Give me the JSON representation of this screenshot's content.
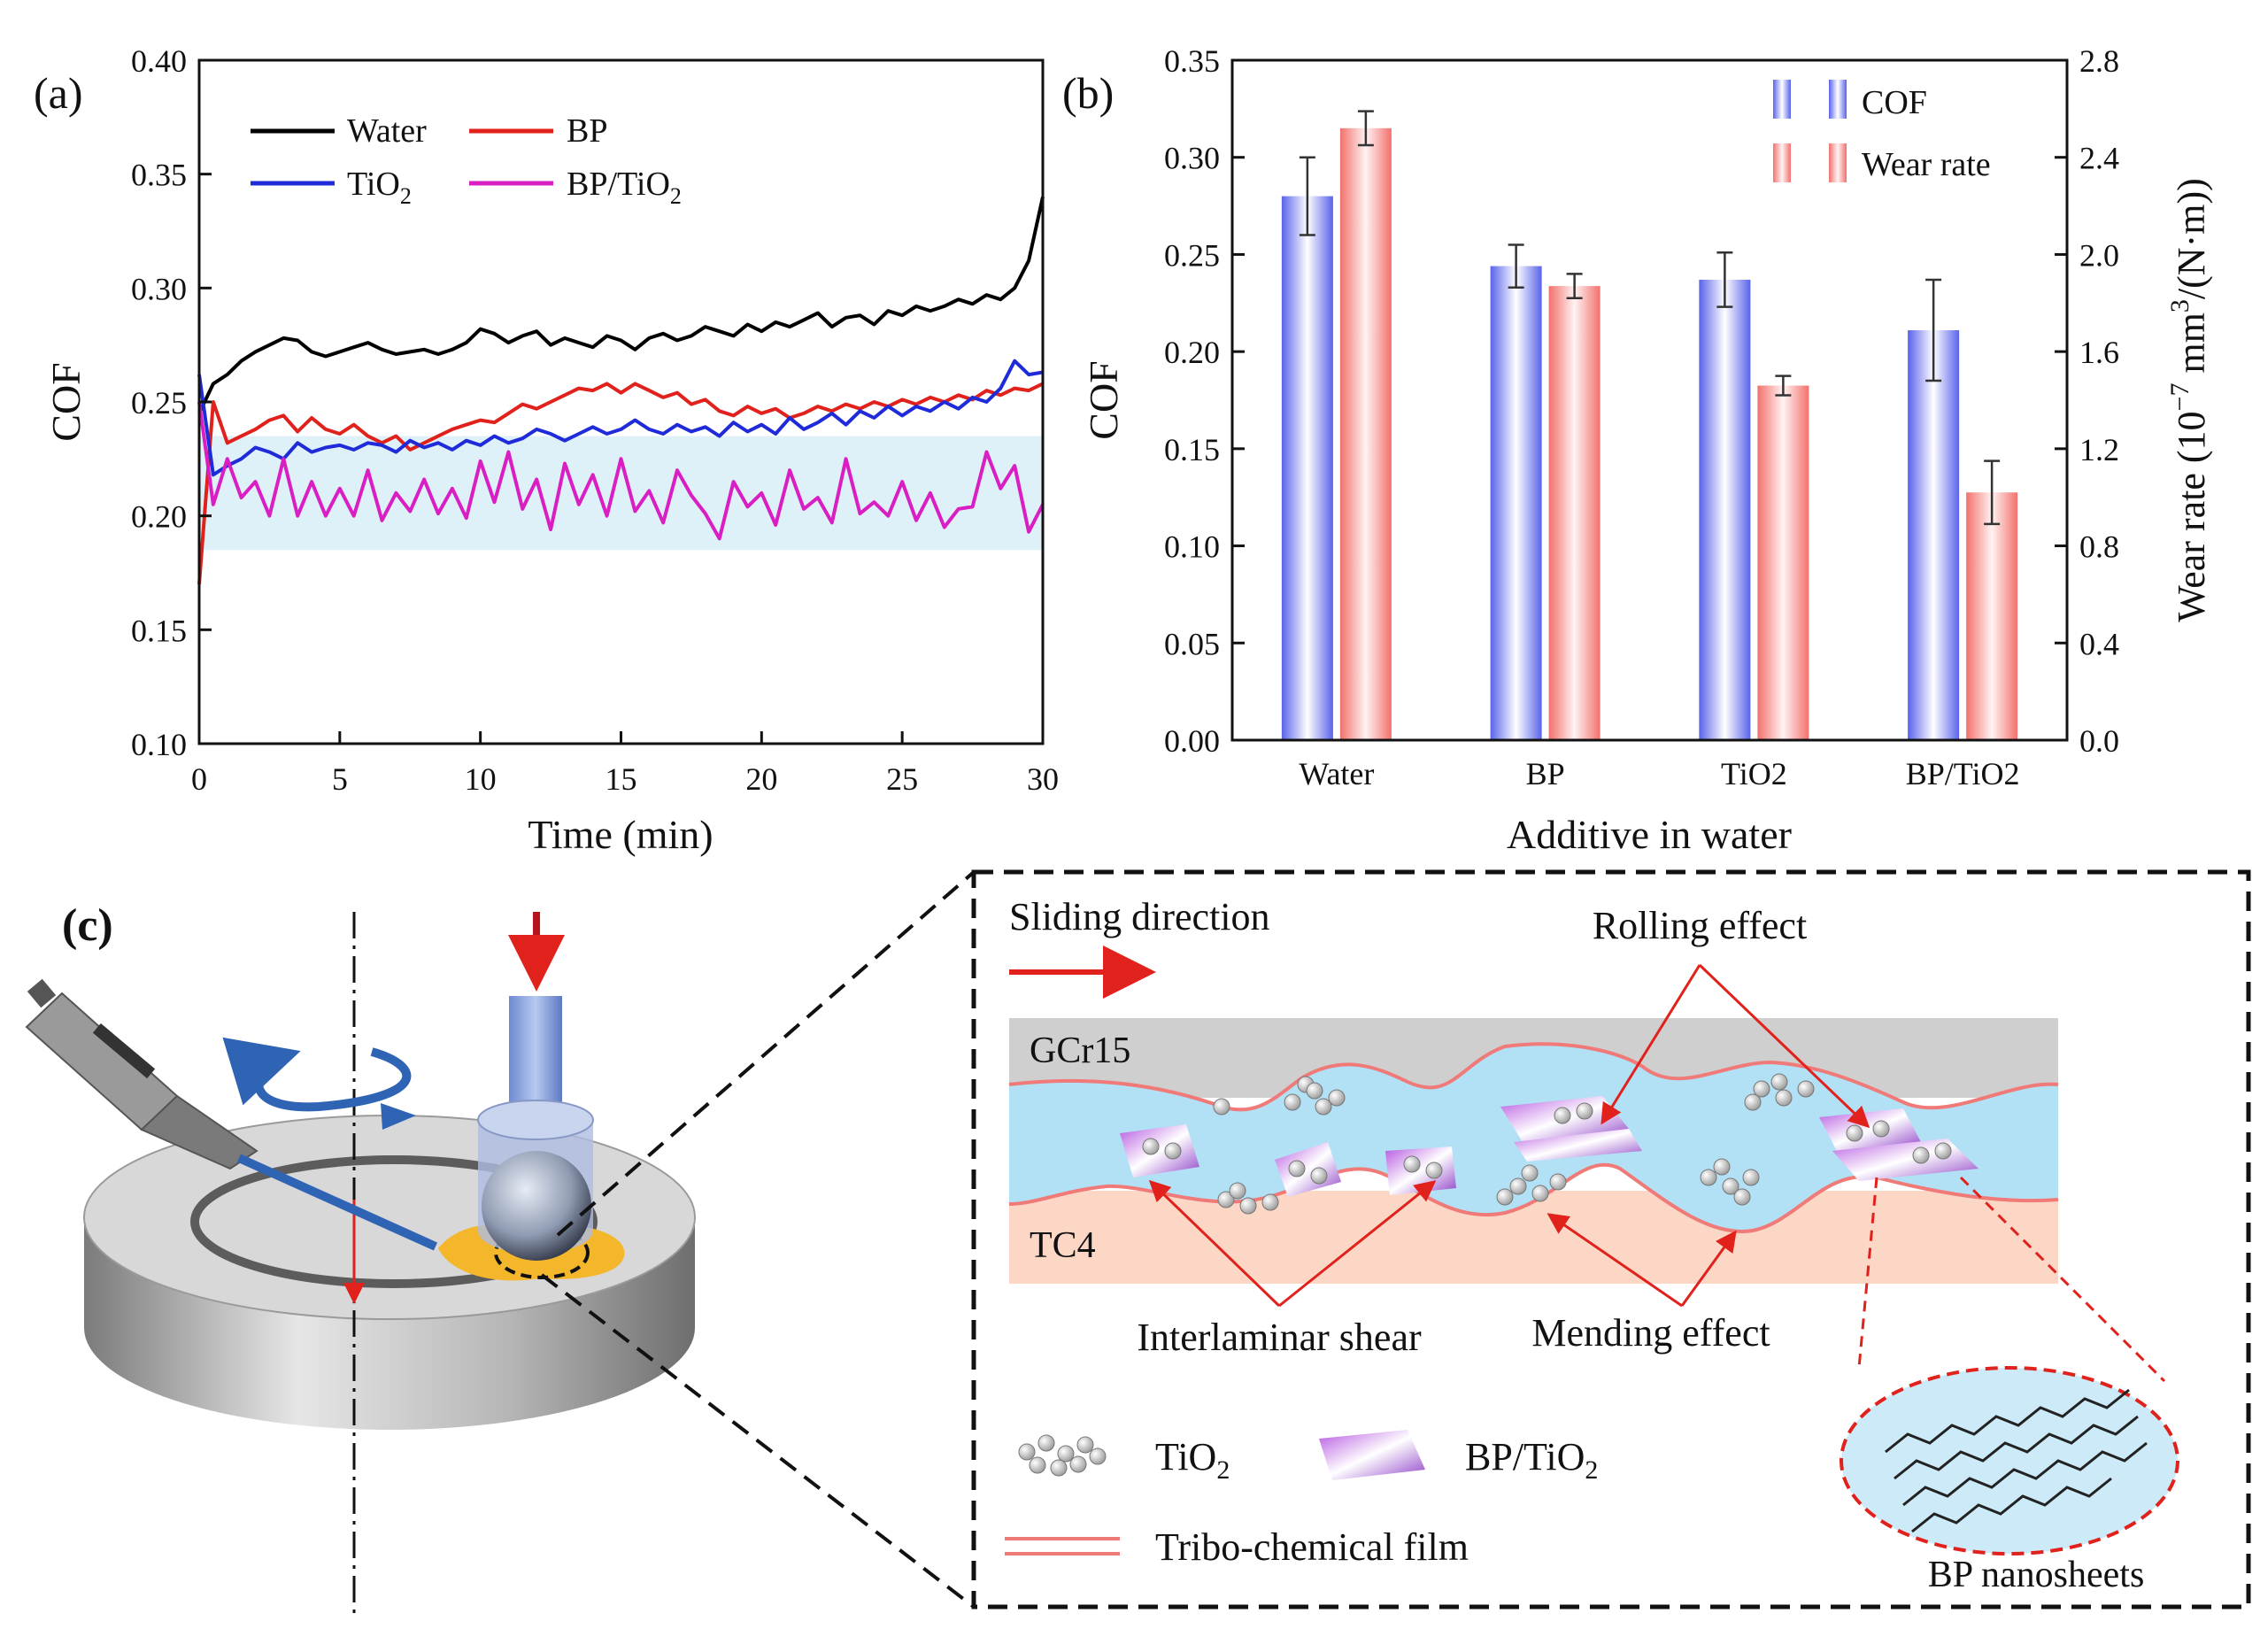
{
  "panel_labels": {
    "a": "(a)",
    "b": "(b)",
    "c": "(c)"
  },
  "chart_data": [
    {
      "type": "line",
      "panel": "(a)",
      "xlabel": "Time (min)",
      "ylabel": "COF",
      "xlim": [
        0,
        30
      ],
      "ylim": [
        0.1,
        0.4
      ],
      "xticks": [
        "0",
        "5",
        "10",
        "15",
        "20",
        "25",
        "30"
      ],
      "yticks": [
        "0.10",
        "0.15",
        "0.20",
        "0.25",
        "0.30",
        "0.35",
        "0.40"
      ],
      "shaded_band": [
        0.185,
        0.235
      ],
      "series": [
        {
          "name": "Water",
          "color": "#000000",
          "x": [
            0,
            0.5,
            1,
            1.5,
            2,
            2.5,
            3,
            3.5,
            4,
            4.5,
            5,
            5.5,
            6,
            6.5,
            7,
            7.5,
            8,
            8.5,
            9,
            9.5,
            10,
            10.5,
            11,
            11.5,
            12,
            12.5,
            13,
            13.5,
            14,
            14.5,
            15,
            15.5,
            16,
            16.5,
            17,
            17.5,
            18,
            18.5,
            19,
            19.5,
            20,
            20.5,
            21,
            21.5,
            22,
            22.5,
            23,
            23.5,
            24,
            24.5,
            25,
            25.5,
            26,
            26.5,
            27,
            27.5,
            28,
            28.5,
            29,
            29.5,
            30
          ],
          "y": [
            0.245,
            0.258,
            0.262,
            0.268,
            0.272,
            0.275,
            0.278,
            0.277,
            0.272,
            0.27,
            0.272,
            0.274,
            0.276,
            0.273,
            0.271,
            0.272,
            0.273,
            0.271,
            0.273,
            0.276,
            0.282,
            0.28,
            0.276,
            0.279,
            0.281,
            0.275,
            0.278,
            0.276,
            0.274,
            0.279,
            0.277,
            0.273,
            0.278,
            0.28,
            0.277,
            0.279,
            0.283,
            0.281,
            0.279,
            0.284,
            0.281,
            0.285,
            0.283,
            0.286,
            0.289,
            0.283,
            0.287,
            0.288,
            0.284,
            0.29,
            0.288,
            0.292,
            0.29,
            0.292,
            0.295,
            0.293,
            0.297,
            0.295,
            0.3,
            0.312,
            0.34
          ]
        },
        {
          "name": "BP",
          "color": "#e0211c",
          "x": [
            0,
            0.5,
            1,
            1.5,
            2,
            2.5,
            3,
            3.5,
            4,
            4.5,
            5,
            5.5,
            6,
            6.5,
            7,
            7.5,
            8,
            8.5,
            9,
            9.5,
            10,
            10.5,
            11,
            11.5,
            12,
            12.5,
            13,
            13.5,
            14,
            14.5,
            15,
            15.5,
            16,
            16.5,
            17,
            17.5,
            18,
            18.5,
            19,
            19.5,
            20,
            20.5,
            21,
            21.5,
            22,
            22.5,
            23,
            23.5,
            24,
            24.5,
            25,
            25.5,
            26,
            26.5,
            27,
            27.5,
            28,
            28.5,
            29,
            29.5,
            30
          ],
          "y": [
            0.17,
            0.25,
            0.232,
            0.235,
            0.238,
            0.242,
            0.244,
            0.237,
            0.243,
            0.238,
            0.236,
            0.24,
            0.235,
            0.232,
            0.235,
            0.229,
            0.232,
            0.235,
            0.238,
            0.24,
            0.242,
            0.241,
            0.245,
            0.249,
            0.247,
            0.25,
            0.253,
            0.256,
            0.255,
            0.258,
            0.254,
            0.258,
            0.255,
            0.252,
            0.254,
            0.249,
            0.251,
            0.246,
            0.244,
            0.248,
            0.245,
            0.247,
            0.243,
            0.245,
            0.248,
            0.246,
            0.249,
            0.247,
            0.25,
            0.248,
            0.251,
            0.249,
            0.252,
            0.25,
            0.253,
            0.251,
            0.255,
            0.253,
            0.256,
            0.255,
            0.258
          ]
        },
        {
          "name": "TiO2",
          "color": "#1f2bd8",
          "x": [
            0,
            0.5,
            1,
            1.5,
            2,
            2.5,
            3,
            3.5,
            4,
            4.5,
            5,
            5.5,
            6,
            6.5,
            7,
            7.5,
            8,
            8.5,
            9,
            9.5,
            10,
            10.5,
            11,
            11.5,
            12,
            12.5,
            13,
            13.5,
            14,
            14.5,
            15,
            15.5,
            16,
            16.5,
            17,
            17.5,
            18,
            18.5,
            19,
            19.5,
            20,
            20.5,
            21,
            21.5,
            22,
            22.5,
            23,
            23.5,
            24,
            24.5,
            25,
            25.5,
            26,
            26.5,
            27,
            27.5,
            28,
            28.5,
            29,
            29.5,
            30
          ],
          "y": [
            0.262,
            0.218,
            0.222,
            0.225,
            0.23,
            0.228,
            0.225,
            0.232,
            0.228,
            0.23,
            0.231,
            0.229,
            0.232,
            0.231,
            0.228,
            0.233,
            0.23,
            0.232,
            0.229,
            0.233,
            0.231,
            0.235,
            0.232,
            0.234,
            0.238,
            0.236,
            0.233,
            0.236,
            0.239,
            0.236,
            0.238,
            0.242,
            0.238,
            0.236,
            0.24,
            0.237,
            0.239,
            0.235,
            0.241,
            0.237,
            0.24,
            0.236,
            0.243,
            0.238,
            0.241,
            0.245,
            0.24,
            0.246,
            0.243,
            0.248,
            0.244,
            0.248,
            0.246,
            0.25,
            0.247,
            0.252,
            0.25,
            0.256,
            0.268,
            0.262,
            0.263
          ]
        },
        {
          "name": "BP/TiO2",
          "color": "#d91fc4",
          "x": [
            0,
            0.5,
            1,
            1.5,
            2,
            2.5,
            3,
            3.5,
            4,
            4.5,
            5,
            5.5,
            6,
            6.5,
            7,
            7.5,
            8,
            8.5,
            9,
            9.5,
            10,
            10.5,
            11,
            11.5,
            12,
            12.5,
            13,
            13.5,
            14,
            14.5,
            15,
            15.5,
            16,
            16.5,
            17,
            17.5,
            18,
            18.5,
            19,
            19.5,
            20,
            20.5,
            21,
            21.5,
            22,
            22.5,
            23,
            23.5,
            24,
            24.5,
            25,
            25.5,
            26,
            26.5,
            27,
            27.5,
            28,
            28.5,
            29,
            29.5,
            30
          ],
          "y": [
            0.25,
            0.205,
            0.225,
            0.208,
            0.215,
            0.2,
            0.225,
            0.2,
            0.215,
            0.2,
            0.212,
            0.2,
            0.22,
            0.198,
            0.21,
            0.202,
            0.216,
            0.201,
            0.212,
            0.199,
            0.224,
            0.206,
            0.228,
            0.203,
            0.216,
            0.194,
            0.223,
            0.205,
            0.218,
            0.2,
            0.225,
            0.202,
            0.211,
            0.197,
            0.22,
            0.209,
            0.201,
            0.19,
            0.215,
            0.204,
            0.21,
            0.196,
            0.22,
            0.203,
            0.208,
            0.197,
            0.225,
            0.201,
            0.206,
            0.2,
            0.215,
            0.198,
            0.21,
            0.195,
            0.203,
            0.204,
            0.228,
            0.212,
            0.222,
            0.193,
            0.205
          ]
        }
      ]
    },
    {
      "type": "bar",
      "panel": "(b)",
      "xlabel": "Additive in water",
      "ylabel": "COF",
      "y2label_main": "Wear rate (10",
      "y2label_exp1": "−7",
      "y2label_mid": " mm",
      "y2label_exp2": "3",
      "y2label_end": "/(N·m))",
      "categories": [
        "Water",
        "BP",
        "TiO2",
        "BP/TiO2"
      ],
      "ylim": [
        0,
        0.35
      ],
      "y2lim": [
        0,
        2.8
      ],
      "yticks": [
        "0.00",
        "0.05",
        "0.10",
        "0.15",
        "0.20",
        "0.25",
        "0.30",
        "0.35"
      ],
      "y2ticks": [
        "0.0",
        "0.4",
        "0.8",
        "1.2",
        "1.6",
        "2.0",
        "2.4",
        "2.8"
      ],
      "series": [
        {
          "name": "COF",
          "axis": "left",
          "color": "#5a6cf0",
          "values": [
            0.28,
            0.244,
            0.237,
            0.211
          ],
          "errors": [
            0.02,
            0.011,
            0.014,
            0.026
          ]
        },
        {
          "name": "Wear rate",
          "axis": "right",
          "color": "#f07a78",
          "values": [
            2.52,
            1.87,
            1.46,
            1.02
          ],
          "errors": [
            0.07,
            0.05,
            0.04,
            0.13
          ]
        }
      ]
    }
  ],
  "schematic": {
    "sliding_direction": "Sliding direction",
    "rolling_effect": "Rolling effect",
    "upper_surface": "GCr15",
    "lower_surface": "TC4",
    "interlaminar_shear": "Interlaminar shear",
    "mending_effect": "Mending effect",
    "legend_tio2": "TiO",
    "legend_tio2_sub": "2",
    "legend_bptio2": "BP/TiO",
    "legend_bptio2_sub": "2",
    "legend_film": "Tribo-chemical film",
    "bp_nanosheets": "BP nanosheets"
  }
}
